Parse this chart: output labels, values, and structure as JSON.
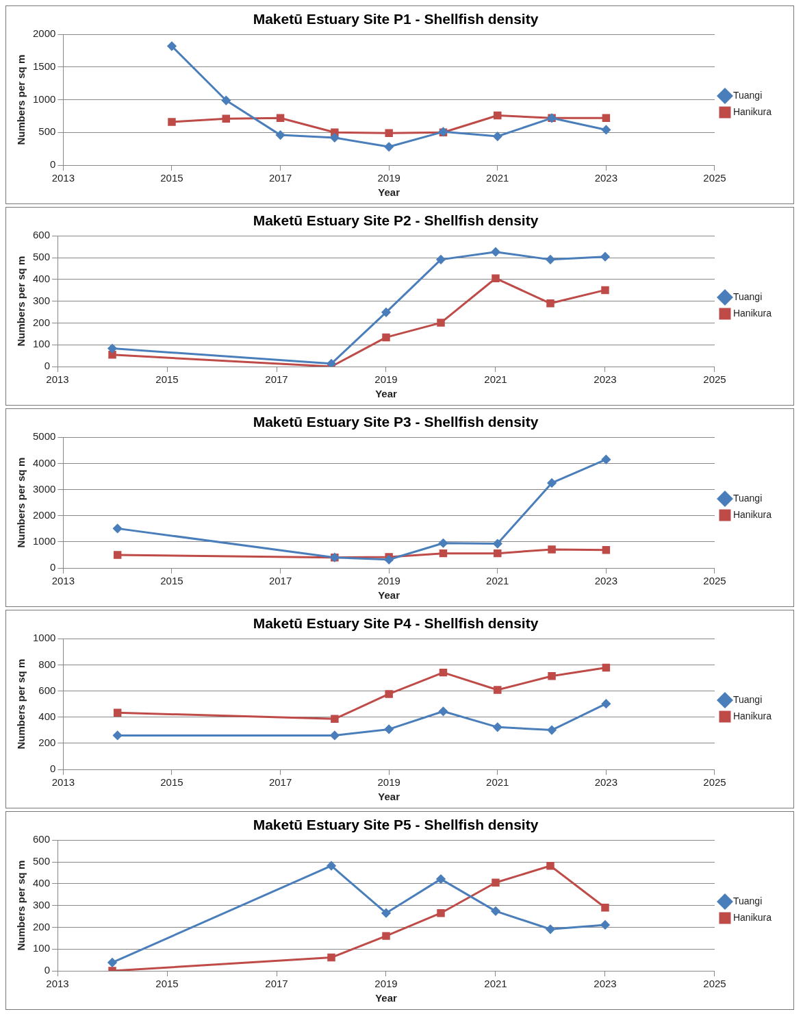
{
  "chart_data": [
    {
      "type": "line",
      "title": "Maketū Estuary Site P1 - Shellfish density",
      "xlabel": "Year",
      "ylabel": "Numbers per sq m",
      "x": [
        2015,
        2016,
        2017,
        2018,
        2019,
        2020,
        2021,
        2022,
        2023
      ],
      "xlim": [
        2013,
        2025
      ],
      "xticks": [
        2013,
        2015,
        2017,
        2019,
        2021,
        2023,
        2025
      ],
      "ylim": [
        0,
        2000
      ],
      "yticks": [
        0,
        500,
        1000,
        1500,
        2000
      ],
      "grid": "y",
      "legend": "right",
      "series": [
        {
          "name": "Tuangi",
          "color": "#4a7ebb",
          "marker": "diamond",
          "values": [
            1820,
            990,
            460,
            420,
            280,
            510,
            440,
            720,
            540
          ]
        },
        {
          "name": "Hanikura",
          "color": "#be4b48",
          "marker": "square",
          "values": [
            660,
            710,
            720,
            500,
            490,
            500,
            760,
            720,
            720
          ]
        }
      ]
    },
    {
      "type": "line",
      "title": "Maketū Estuary Site P2 - Shellfish density",
      "xlabel": "Year",
      "ylabel": "Numbers per sq m",
      "x": [
        2014,
        2018,
        2019,
        2020,
        2021,
        2022,
        2023
      ],
      "xlim": [
        2013,
        2025
      ],
      "xticks": [
        2013,
        2015,
        2017,
        2019,
        2021,
        2023,
        2025
      ],
      "ylim": [
        0,
        600
      ],
      "yticks": [
        0,
        100,
        200,
        300,
        400,
        500,
        600
      ],
      "grid": "y",
      "legend": "right",
      "series": [
        {
          "name": "Tuangi",
          "color": "#4a7ebb",
          "marker": "diamond",
          "values": [
            83,
            13,
            249,
            491,
            526,
            491,
            504
          ]
        },
        {
          "name": "Hanikura",
          "color": "#be4b48",
          "marker": "square",
          "values": [
            54,
            0,
            134,
            201,
            405,
            290,
            351
          ]
        }
      ]
    },
    {
      "type": "line",
      "title": "Maketū Estuary Site P3 - Shellfish density",
      "xlabel": "Year",
      "ylabel": "Numbers per sq m",
      "x": [
        2014,
        2018,
        2019,
        2020,
        2021,
        2022,
        2023
      ],
      "xlim": [
        2013,
        2025
      ],
      "xticks": [
        2013,
        2015,
        2017,
        2019,
        2021,
        2023,
        2025
      ],
      "ylim": [
        0,
        5000
      ],
      "yticks": [
        0,
        1000,
        2000,
        3000,
        4000,
        5000
      ],
      "grid": "y",
      "legend": "right",
      "series": [
        {
          "name": "Tuangi",
          "color": "#4a7ebb",
          "marker": "diamond",
          "values": [
            1510,
            400,
            320,
            950,
            930,
            3250,
            4150
          ]
        },
        {
          "name": "Hanikura",
          "color": "#be4b48",
          "marker": "square",
          "values": [
            500,
            400,
            420,
            560,
            560,
            710,
            690
          ]
        }
      ]
    },
    {
      "type": "line",
      "title": "Maketū Estuary Site P4 - Shellfish density",
      "xlabel": "Year",
      "ylabel": "Numbers per sq m",
      "x": [
        2014,
        2018,
        2019,
        2020,
        2021,
        2022,
        2023
      ],
      "xlim": [
        2013,
        2025
      ],
      "xticks": [
        2013,
        2015,
        2017,
        2019,
        2021,
        2023,
        2025
      ],
      "ylim": [
        0,
        1000
      ],
      "yticks": [
        0,
        200,
        400,
        600,
        800,
        1000
      ],
      "grid": "y",
      "legend": "right",
      "series": [
        {
          "name": "Tuangi",
          "color": "#4a7ebb",
          "marker": "diamond",
          "values": [
            260,
            260,
            307,
            444,
            323,
            301,
            502
          ]
        },
        {
          "name": "Hanikura",
          "color": "#be4b48",
          "marker": "square",
          "values": [
            434,
            386,
            577,
            741,
            608,
            714,
            778
          ]
        }
      ]
    },
    {
      "type": "line",
      "title": "Maketū Estuary Site P5 - Shellfish density",
      "xlabel": "Year",
      "ylabel": "Numbers per sq m",
      "x": [
        2014,
        2018,
        2019,
        2020,
        2021,
        2022,
        2023
      ],
      "xlim": [
        2013,
        2025
      ],
      "xticks": [
        2013,
        2015,
        2017,
        2019,
        2021,
        2023,
        2025
      ],
      "ylim": [
        0,
        600
      ],
      "yticks": [
        0,
        100,
        200,
        300,
        400,
        500,
        600
      ],
      "grid": "y",
      "legend": "right",
      "series": [
        {
          "name": "Tuangi",
          "color": "#4a7ebb",
          "marker": "diamond",
          "values": [
            38,
            482,
            265,
            421,
            274,
            191,
            211
          ]
        },
        {
          "name": "Hanikura",
          "color": "#be4b48",
          "marker": "square",
          "values": [
            0,
            61,
            160,
            265,
            405,
            482,
            290
          ]
        }
      ]
    }
  ]
}
